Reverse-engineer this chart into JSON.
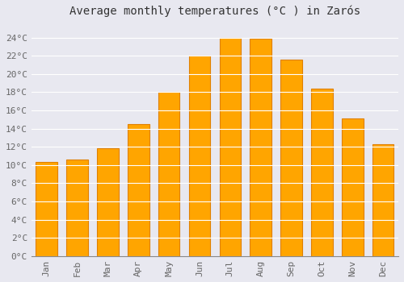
{
  "title": "Average monthly temperatures (°C ) in Zarós",
  "months": [
    "Jan",
    "Feb",
    "Mar",
    "Apr",
    "May",
    "Jun",
    "Jul",
    "Aug",
    "Sep",
    "Oct",
    "Nov",
    "Dec"
  ],
  "values": [
    10.3,
    10.6,
    11.8,
    14.5,
    18.0,
    22.0,
    24.0,
    23.9,
    21.6,
    18.4,
    15.1,
    12.3
  ],
  "bar_color": "#FFA500",
  "bar_edge_color": "#E08000",
  "background_color": "#E8E8F0",
  "plot_bg_color": "#E8E8F0",
  "grid_color": "#FFFFFF",
  "ytick_labels": [
    "0°C",
    "2°C",
    "4°C",
    "6°C",
    "8°C",
    "10°C",
    "12°C",
    "14°C",
    "16°C",
    "18°C",
    "20°C",
    "22°C",
    "24°C"
  ],
  "ytick_values": [
    0,
    2,
    4,
    6,
    8,
    10,
    12,
    14,
    16,
    18,
    20,
    22,
    24
  ],
  "ylim": [
    0,
    25.5
  ],
  "title_fontsize": 10,
  "tick_fontsize": 8,
  "tick_color": "#666666",
  "title_color": "#333333",
  "font_family": "monospace"
}
